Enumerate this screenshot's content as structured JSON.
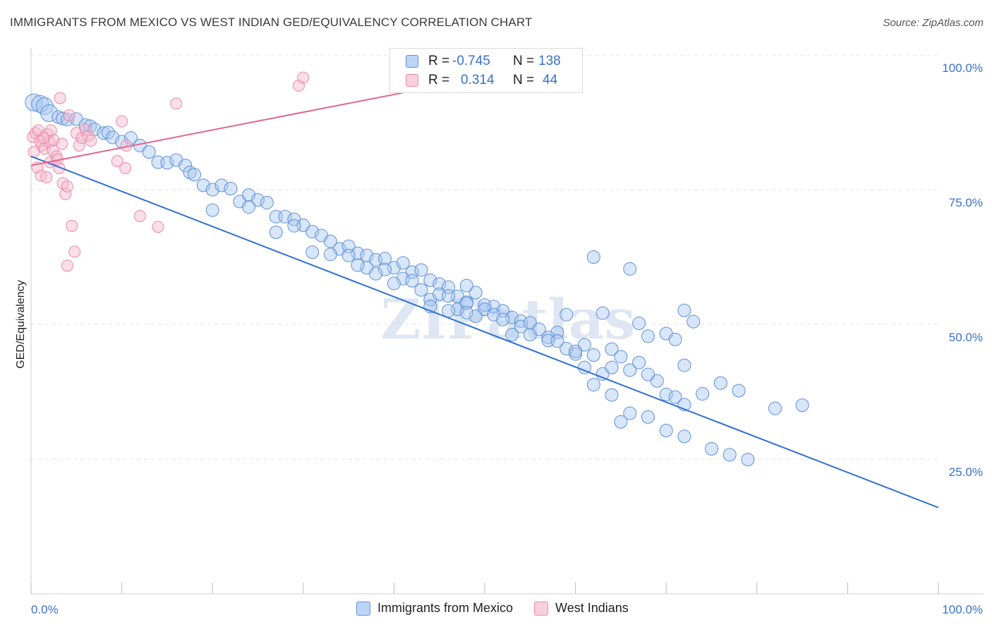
{
  "title": "IMMIGRANTS FROM MEXICO VS WEST INDIAN GED/EQUIVALENCY CORRELATION CHART",
  "source": "Source: ZipAtlas.com",
  "watermark": "ZIPatlas",
  "legend": {
    "rows": [
      {
        "swatch": "#a9c8f2",
        "r_label": "R =",
        "r_value": "-0.745",
        "n_label": "N =",
        "n_value": "138"
      },
      {
        "swatch": "#f7b7cb",
        "r_label": "R =",
        "r_value": "0.314",
        "n_label": "N =",
        "n_value": "44"
      }
    ]
  },
  "bottom_legend": [
    {
      "label": "Immigrants from Mexico",
      "swatch": "#a9c8f2"
    },
    {
      "label": "West Indians",
      "swatch": "#f7b7cb"
    }
  ],
  "colors": {
    "blue_fill": "#a9c8f2",
    "blue_stroke": "#5f8fd6",
    "blue_line": "#2f6fd6",
    "pink_fill": "#f7b7cb",
    "pink_stroke": "#e88aa8",
    "pink_line": "#e0668e",
    "grid": "#e0e0e0",
    "tick_text": "#3a6fd0"
  },
  "chart_data": {
    "type": "scatter",
    "title": "IMMIGRANTS FROM MEXICO VS WEST INDIAN GED/EQUIVALENCY CORRELATION CHART",
    "xlabel": "",
    "ylabel": "GED/Equivalency",
    "xlim": [
      0,
      100
    ],
    "ylim": [
      0,
      100
    ],
    "x_tick_labels": [
      "0.0%",
      "100.0%"
    ],
    "y_tick_labels": [
      "100.0%",
      "75.0%",
      "50.0%",
      "25.0%"
    ],
    "y_ticks": [
      100,
      75,
      50,
      25
    ],
    "grid": "horizontal dashed",
    "legend_placement": "top-center and bottom",
    "series": [
      {
        "name": "Immigrants from Mexico",
        "r": -0.745,
        "n": 138,
        "trend": {
          "x": [
            0,
            100
          ],
          "y": [
            81.2,
            16.0
          ]
        },
        "points": [
          [
            0.3,
            91.2
          ],
          [
            1,
            90.9
          ],
          [
            1.5,
            90.5
          ],
          [
            2,
            89.2
          ],
          [
            3,
            88.5
          ],
          [
            3.5,
            88.2
          ],
          [
            4,
            88.0
          ],
          [
            5,
            88.1
          ],
          [
            6,
            87.0
          ],
          [
            6.5,
            86.8
          ],
          [
            7,
            86.2
          ],
          [
            8,
            85.5
          ],
          [
            8.5,
            85.6
          ],
          [
            9,
            84.7
          ],
          [
            10,
            83.9
          ],
          [
            11,
            84.6
          ],
          [
            12,
            83.2
          ],
          [
            13,
            82.0
          ],
          [
            14,
            80.1
          ],
          [
            15,
            80.0
          ],
          [
            16,
            80.5
          ],
          [
            17,
            79.5
          ],
          [
            17.5,
            78.2
          ],
          [
            18,
            77.8
          ],
          [
            19,
            75.8
          ],
          [
            20,
            75.0
          ],
          [
            21,
            75.8
          ],
          [
            22,
            75.2
          ],
          [
            23,
            72.8
          ],
          [
            24,
            74.0
          ],
          [
            25,
            73.1
          ],
          [
            26,
            72.6
          ],
          [
            27,
            70.0
          ],
          [
            28,
            70.0
          ],
          [
            29,
            69.5
          ],
          [
            30,
            68.4
          ],
          [
            31,
            67.2
          ],
          [
            32,
            66.5
          ],
          [
            33,
            65.4
          ],
          [
            34,
            64.0
          ],
          [
            35,
            64.5
          ],
          [
            36,
            63.2
          ],
          [
            37,
            62.8
          ],
          [
            38,
            62.0
          ],
          [
            39,
            62.2
          ],
          [
            40,
            60.5
          ],
          [
            41,
            61.4
          ],
          [
            42,
            59.7
          ],
          [
            43,
            60.1
          ],
          [
            44,
            58.2
          ],
          [
            45,
            57.5
          ],
          [
            46,
            56.9
          ],
          [
            47,
            55.2
          ],
          [
            48,
            54.1
          ],
          [
            49,
            55.9
          ],
          [
            50,
            53.6
          ],
          [
            51,
            53.3
          ],
          [
            52,
            52.5
          ],
          [
            53,
            51.3
          ],
          [
            54,
            50.6
          ],
          [
            35,
            62.8
          ],
          [
            39,
            60.2
          ],
          [
            41,
            58.5
          ],
          [
            43,
            56.4
          ],
          [
            44,
            54.6
          ],
          [
            47,
            52.8
          ],
          [
            48,
            57.2
          ],
          [
            50,
            52.8
          ],
          [
            54,
            49.6
          ],
          [
            55,
            48.1
          ],
          [
            37,
            60.5
          ],
          [
            38,
            59.4
          ],
          [
            42,
            58.1
          ],
          [
            45,
            55.6
          ],
          [
            46,
            55.3
          ],
          [
            48,
            53.9
          ],
          [
            49,
            51.5
          ],
          [
            51,
            51.8
          ],
          [
            52,
            50.9
          ],
          [
            53,
            48.1
          ],
          [
            20,
            71.2
          ],
          [
            24,
            71.8
          ],
          [
            27,
            67.1
          ],
          [
            29,
            68.3
          ],
          [
            31,
            63.4
          ],
          [
            33,
            63.0
          ],
          [
            36,
            61.0
          ],
          [
            40,
            57.6
          ],
          [
            44,
            53.3
          ],
          [
            46,
            52.5
          ],
          [
            59,
            51.8
          ],
          [
            62,
            62.5
          ],
          [
            63,
            52.1
          ],
          [
            66,
            60.3
          ],
          [
            67,
            50.2
          ],
          [
            68,
            47.8
          ],
          [
            70,
            48.3
          ],
          [
            71,
            47.2
          ],
          [
            72,
            52.6
          ],
          [
            73,
            50.5
          ],
          [
            58,
            48.5
          ],
          [
            61,
            46.2
          ],
          [
            64,
            45.4
          ],
          [
            65,
            44.0
          ],
          [
            67,
            42.9
          ],
          [
            69,
            39.5
          ],
          [
            70,
            37.0
          ],
          [
            71,
            36.5
          ],
          [
            72,
            35.1
          ],
          [
            74,
            37.1
          ],
          [
            57,
            47.6
          ],
          [
            60,
            44.5
          ],
          [
            63,
            40.8
          ],
          [
            66,
            33.5
          ],
          [
            68,
            32.8
          ],
          [
            70,
            30.3
          ],
          [
            72,
            29.2
          ],
          [
            75,
            26.9
          ],
          [
            77,
            25.8
          ],
          [
            79,
            24.9
          ],
          [
            57,
            47.0
          ],
          [
            59,
            45.5
          ],
          [
            61,
            42.0
          ],
          [
            62,
            38.8
          ],
          [
            64,
            36.9
          ],
          [
            65,
            31.9
          ],
          [
            76,
            39.1
          ],
          [
            78,
            37.7
          ],
          [
            82,
            34.4
          ],
          [
            85,
            35.0
          ],
          [
            48,
            52.2
          ],
          [
            55,
            50.3
          ],
          [
            56,
            49.1
          ],
          [
            58,
            46.9
          ],
          [
            60,
            45.0
          ],
          [
            62,
            44.3
          ],
          [
            64,
            42.0
          ],
          [
            66,
            41.5
          ],
          [
            68,
            40.7
          ],
          [
            72,
            42.4
          ]
        ]
      },
      {
        "name": "West Indians",
        "r": 0.314,
        "n": 44,
        "trend": {
          "x": [
            0,
            41
          ],
          "y": [
            79.5,
            93.0
          ]
        },
        "points": [
          [
            0.2,
            84.8
          ],
          [
            0.5,
            85.5
          ],
          [
            0.8,
            86.0
          ],
          [
            1.0,
            84.0
          ],
          [
            1.2,
            83.2
          ],
          [
            1.5,
            82.6
          ],
          [
            1.8,
            85.3
          ],
          [
            2.0,
            83.9
          ],
          [
            2.2,
            86.0
          ],
          [
            2.5,
            84.2
          ],
          [
            0.3,
            82.0
          ],
          [
            0.7,
            79.1
          ],
          [
            1.1,
            77.6
          ],
          [
            1.7,
            77.3
          ],
          [
            2.1,
            80.1
          ],
          [
            2.4,
            82.3
          ],
          [
            2.8,
            81.2
          ],
          [
            3.1,
            79.0
          ],
          [
            3.5,
            76.2
          ],
          [
            3.8,
            74.2
          ],
          [
            4.0,
            75.6
          ],
          [
            4.5,
            68.3
          ],
          [
            4.8,
            63.5
          ],
          [
            4.0,
            60.9
          ],
          [
            5.0,
            85.5
          ],
          [
            5.3,
            83.2
          ],
          [
            5.6,
            84.6
          ],
          [
            6.0,
            86.2
          ],
          [
            6.3,
            85.0
          ],
          [
            6.6,
            84.1
          ],
          [
            4.2,
            88.8
          ],
          [
            3.2,
            92.0
          ],
          [
            9.5,
            80.3
          ],
          [
            10.4,
            79.0
          ],
          [
            12.0,
            70.1
          ],
          [
            14.0,
            68.1
          ],
          [
            10.0,
            87.7
          ],
          [
            10.5,
            83.2
          ],
          [
            16.0,
            91.0
          ],
          [
            29.5,
            94.3
          ],
          [
            30.0,
            95.8
          ],
          [
            2.9,
            80.6
          ],
          [
            3.4,
            83.5
          ],
          [
            1.4,
            84.6
          ]
        ]
      }
    ]
  }
}
